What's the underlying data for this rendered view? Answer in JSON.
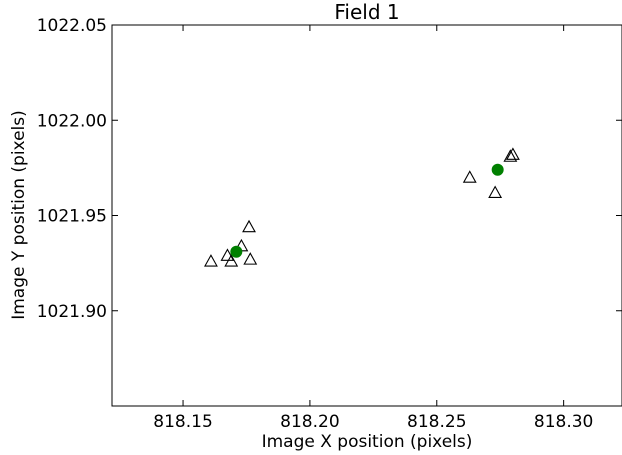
{
  "chart_data": {
    "type": "scatter",
    "title": "Field 1",
    "xlabel": "Image X position (pixels)",
    "ylabel": "Image Y position (pixels)",
    "xlim": [
      818.122,
      818.323
    ],
    "ylim": [
      1021.85,
      1022.05
    ],
    "xticks": [
      818.15,
      818.2,
      818.25,
      818.3
    ],
    "xtick_labels": [
      "818.15",
      "818.20",
      "818.25",
      "818.30"
    ],
    "yticks": [
      1021.9,
      1021.95,
      1022.0,
      1022.05
    ],
    "ytick_labels": [
      "1021.90",
      "1021.95",
      "1022.00",
      "1022.05"
    ],
    "grid": false,
    "series": [
      {
        "marker": "triangle-open",
        "color": "#000000",
        "points": [
          {
            "x": 818.161,
            "y": 1021.926
          },
          {
            "x": 818.1675,
            "y": 1021.929
          },
          {
            "x": 818.169,
            "y": 1021.926
          },
          {
            "x": 818.173,
            "y": 1021.934
          },
          {
            "x": 818.176,
            "y": 1021.944
          },
          {
            "x": 818.1765,
            "y": 1021.927
          },
          {
            "x": 818.263,
            "y": 1021.97
          },
          {
            "x": 818.273,
            "y": 1021.962
          },
          {
            "x": 818.279,
            "y": 1021.981
          },
          {
            "x": 818.28,
            "y": 1021.982
          }
        ]
      },
      {
        "marker": "circle-filled",
        "color": "#008000",
        "points": [
          {
            "x": 818.171,
            "y": 1021.931
          },
          {
            "x": 818.274,
            "y": 1021.974
          }
        ]
      }
    ]
  }
}
